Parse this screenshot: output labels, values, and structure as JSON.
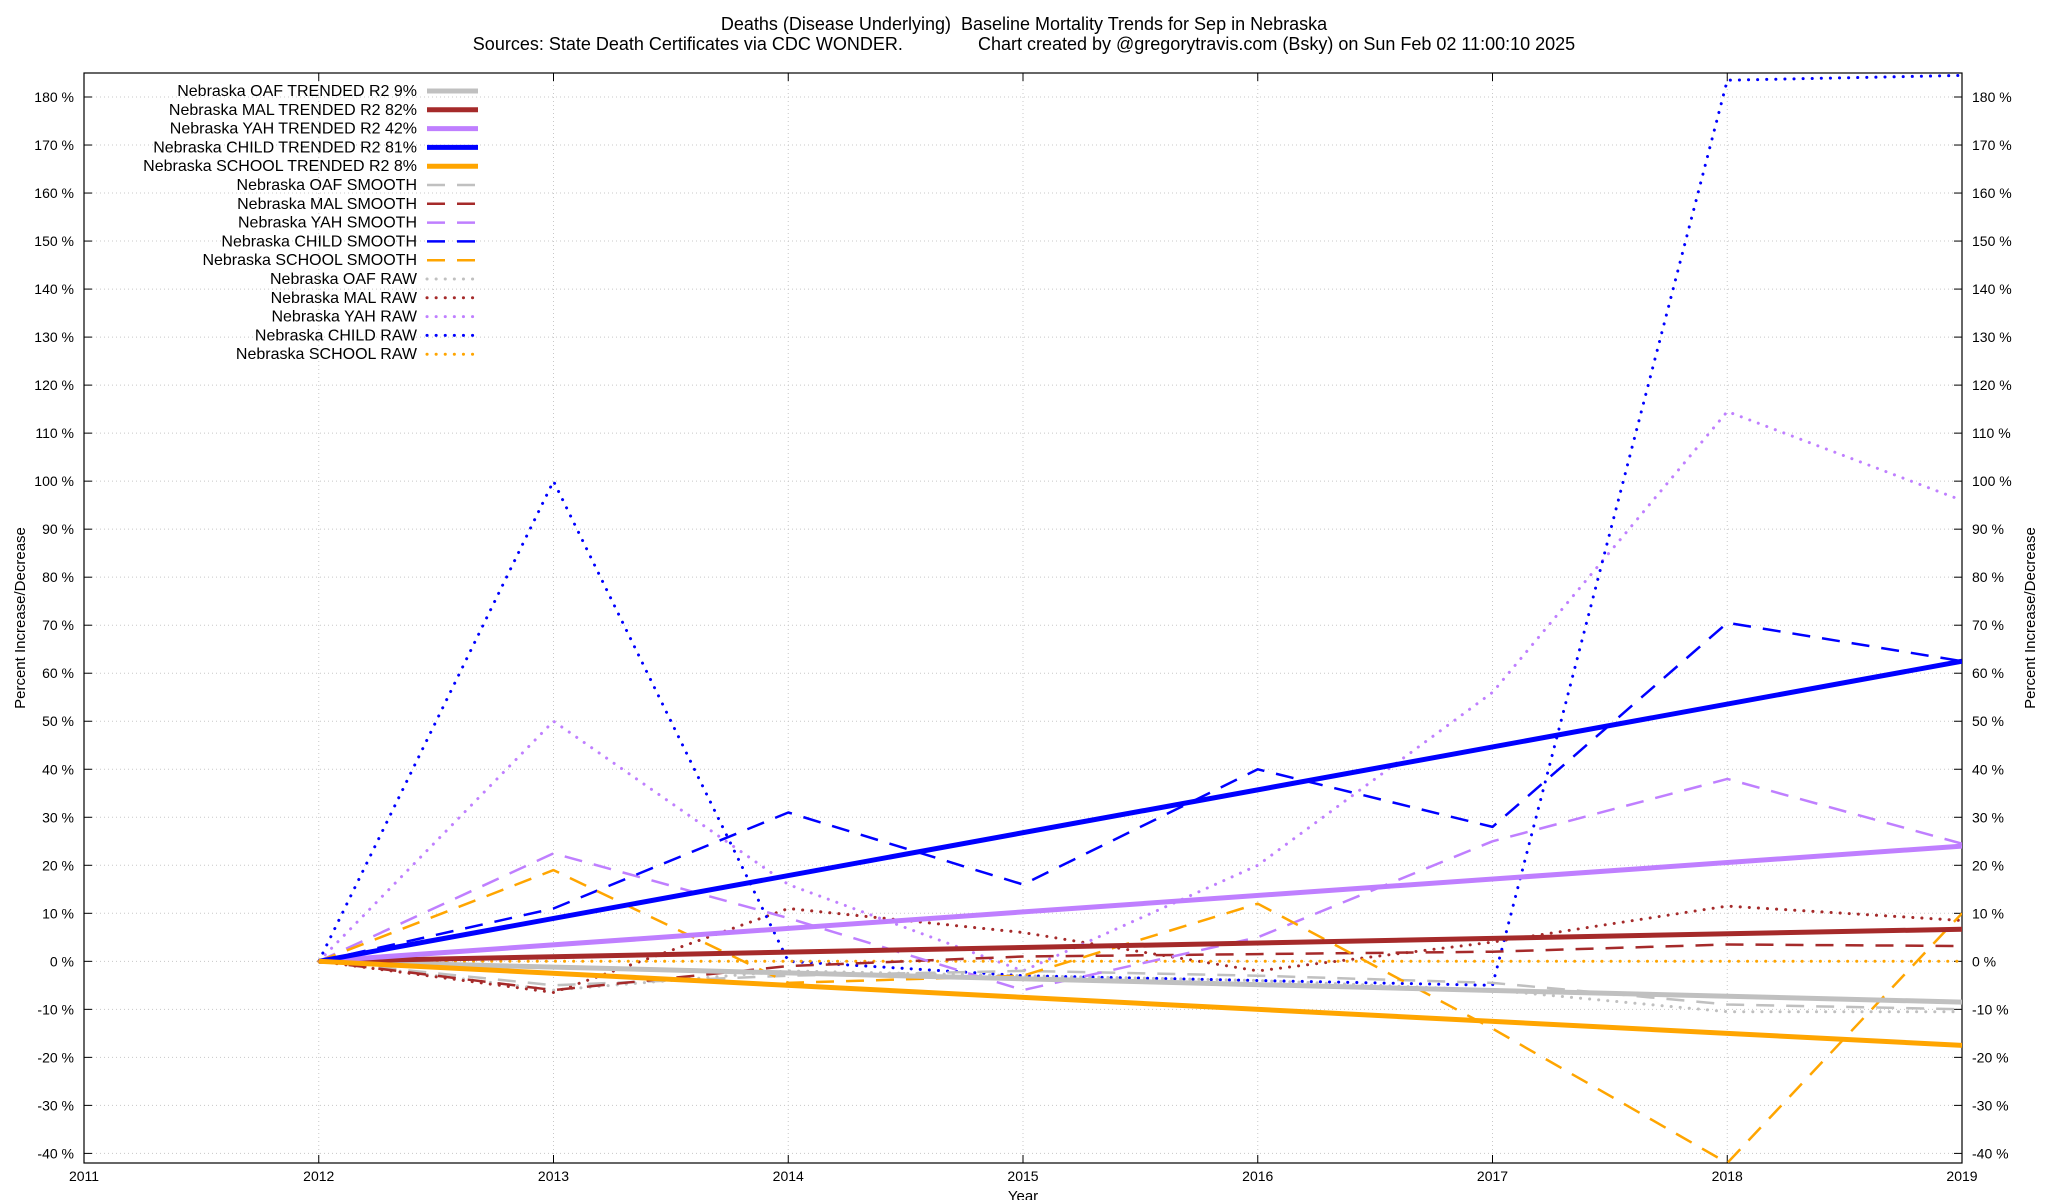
{
  "chart_data": {
    "type": "line",
    "title": "Deaths (Disease Underlying)  Baseline Mortality Trends for Sep in Nebraska",
    "subtitle": "Sources: State Death Certificates via CDC WONDER.               Chart created by @gregorytravis.com (Bsky) on Sun Feb 02 11:00:10 2025",
    "xlabel": "Year",
    "ylabel": "Percent Increase/Decrease",
    "y2label": "Percent Increase/Decrease",
    "xlim": [
      2011,
      2019
    ],
    "ylim": [
      -42,
      185
    ],
    "x_ticks": [
      "2011",
      "2012",
      "2013",
      "2014",
      "2015",
      "2016",
      "2017",
      "2018",
      "2019"
    ],
    "y_ticks": [
      "-40 %",
      "-30 %",
      "-20 %",
      "-10 %",
      "0 %",
      "10 %",
      "20 %",
      "30 %",
      "40 %",
      "50 %",
      "60 %",
      "70 %",
      "80 %",
      "90 %",
      "100 %",
      "110 %",
      "120 %",
      "130 %",
      "140 %",
      "150 %",
      "160 %",
      "170 %",
      "180 %"
    ],
    "grid": true,
    "legend_position": "top-left",
    "colors": {
      "oaf": "#c0c0c0",
      "mal": "#a52a2a",
      "yah": "#bf7fff",
      "child": "#0000ff",
      "school": "#ffa500"
    },
    "series": [
      {
        "name": "Nebraska OAF TRENDED R2  9%",
        "group": "oaf",
        "style": "trend",
        "x": [
          2012,
          2019
        ],
        "values": [
          0,
          -8.5
        ]
      },
      {
        "name": "Nebraska MAL TRENDED R2  82%",
        "group": "mal",
        "style": "trend",
        "x": [
          2012,
          2019
        ],
        "values": [
          0,
          6.7
        ]
      },
      {
        "name": "Nebraska YAH TRENDED R2  42%",
        "group": "yah",
        "style": "trend",
        "x": [
          2012,
          2019
        ],
        "values": [
          0,
          24
        ]
      },
      {
        "name": "Nebraska CHILD TRENDED R2  81%",
        "group": "child",
        "style": "trend",
        "x": [
          2012,
          2019
        ],
        "values": [
          0,
          62.5
        ]
      },
      {
        "name": "Nebraska SCHOOL TRENDED R2  8%",
        "group": "school",
        "style": "trend",
        "x": [
          2012,
          2019
        ],
        "values": [
          0,
          -17.5
        ]
      },
      {
        "name": "Nebraska OAF SMOOTH",
        "group": "oaf",
        "style": "smooth",
        "x": [
          2012,
          2013,
          2014,
          2015,
          2016,
          2017,
          2018,
          2019
        ],
        "values": [
          0,
          -5,
          -3,
          -2,
          -3,
          -4.5,
          -9,
          -10
        ]
      },
      {
        "name": "Nebraska MAL SMOOTH",
        "group": "mal",
        "style": "smooth",
        "x": [
          2012,
          2013,
          2014,
          2015,
          2016,
          2017,
          2018,
          2019
        ],
        "values": [
          0,
          -6,
          -1,
          1,
          1.5,
          2,
          3.5,
          3.2
        ]
      },
      {
        "name": "Nebraska YAH SMOOTH",
        "group": "yah",
        "style": "smooth",
        "x": [
          2012,
          2013,
          2014,
          2015,
          2016,
          2017,
          2018,
          2019
        ],
        "values": [
          0,
          22.5,
          9,
          -6,
          5,
          25,
          38,
          24.5
        ]
      },
      {
        "name": "Nebraska CHILD SMOOTH",
        "group": "child",
        "style": "smooth",
        "x": [
          2012,
          2013,
          2014,
          2015,
          2016,
          2017,
          2018,
          2019
        ],
        "values": [
          0,
          11,
          31,
          16,
          40,
          28,
          70.5,
          62.5
        ]
      },
      {
        "name": "Nebraska SCHOOL SMOOTH",
        "group": "school",
        "style": "smooth",
        "x": [
          2012,
          2013,
          2014,
          2015,
          2016,
          2017,
          2018,
          2019
        ],
        "values": [
          0,
          19,
          -4.5,
          -3,
          12,
          -14,
          -42,
          10
        ]
      },
      {
        "name": "Nebraska OAF RAW",
        "group": "oaf",
        "style": "raw",
        "x": [
          2012,
          2013,
          2014,
          2015,
          2016,
          2017,
          2018,
          2019
        ],
        "values": [
          0,
          -6,
          -2,
          -3,
          -4,
          -6,
          -10.5,
          -10.5
        ]
      },
      {
        "name": "Nebraska MAL RAW",
        "group": "mal",
        "style": "raw",
        "x": [
          2012,
          2013,
          2014,
          2015,
          2016,
          2017,
          2018,
          2019
        ],
        "values": [
          0,
          -6.5,
          11,
          6,
          -2,
          4,
          11.5,
          8.5
        ]
      },
      {
        "name": "Nebraska YAH RAW",
        "group": "yah",
        "style": "raw",
        "x": [
          2012,
          2013,
          2014,
          2015,
          2016,
          2017,
          2018,
          2019
        ],
        "values": [
          0,
          50,
          16,
          -2,
          20,
          56,
          114.5,
          96
        ]
      },
      {
        "name": "Nebraska CHILD RAW",
        "group": "child",
        "style": "raw",
        "x": [
          2012,
          2013,
          2014,
          2015,
          2016,
          2017,
          2018,
          2019
        ],
        "values": [
          0,
          100,
          0,
          -3,
          -4,
          -5,
          183.5,
          184.5
        ]
      },
      {
        "name": "Nebraska SCHOOL RAW",
        "group": "school",
        "style": "raw",
        "x": [
          2012,
          2013,
          2014,
          2015,
          2016,
          2017,
          2018,
          2019
        ],
        "values": [
          0,
          0,
          0,
          0,
          0,
          0,
          0,
          0
        ]
      }
    ]
  }
}
